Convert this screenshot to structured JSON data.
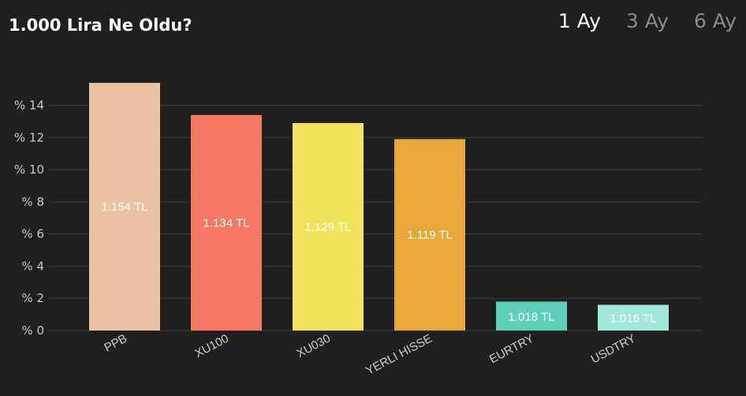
{
  "header": {
    "title": "1.000 Lira Ne Oldu?",
    "periods": [
      {
        "label": "1 Ay",
        "active": true
      },
      {
        "label": "3 Ay",
        "active": false
      },
      {
        "label": "6 Ay",
        "active": false
      }
    ]
  },
  "chart_data": {
    "type": "bar",
    "categories": [
      "PPB",
      "XU100",
      "XU030",
      "YERLI HISSE",
      "EURTRY",
      "USDTRY"
    ],
    "values": [
      15.4,
      13.4,
      12.9,
      11.9,
      1.8,
      1.6
    ],
    "data_labels": [
      "1.154 TL",
      "1.134 TL",
      "1.129 TL",
      "1.119 TL",
      "1.018 TL",
      "1.016 TL"
    ],
    "colors": [
      "#eac3a4",
      "#f57864",
      "#f3e35c",
      "#e8a73a",
      "#5ecfb8",
      "#9fe8da"
    ],
    "y_ticks": [
      0,
      2,
      4,
      6,
      8,
      10,
      12,
      14
    ],
    "y_tick_prefix": "% ",
    "ylim": [
      0,
      15.4
    ],
    "grid": true,
    "title": "",
    "xlabel": "",
    "ylabel": ""
  }
}
